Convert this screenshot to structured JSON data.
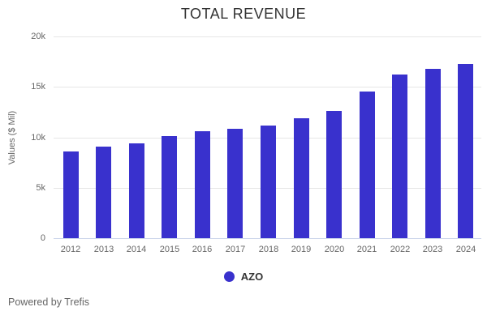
{
  "title": "TOTAL REVENUE",
  "footer": {
    "credit": "Powered by Trefis"
  },
  "legend": {
    "items": [
      {
        "label": "AZO",
        "color": "#3931cd"
      }
    ]
  },
  "chart_data": {
    "type": "bar",
    "title": "TOTAL REVENUE",
    "xlabel": "",
    "ylabel": "Values ($ Mil)",
    "categories": [
      "2012",
      "2013",
      "2014",
      "2015",
      "2016",
      "2017",
      "2018",
      "2019",
      "2020",
      "2021",
      "2022",
      "2023",
      "2024"
    ],
    "series": [
      {
        "name": "AZO",
        "color": "#3931cd",
        "values": [
          8600,
          9100,
          9400,
          10150,
          10600,
          10850,
          11150,
          11850,
          12600,
          14550,
          16200,
          16750,
          17300
        ]
      }
    ],
    "ylim": [
      0,
      20000
    ],
    "y_ticks": [
      {
        "value": 0,
        "label": "0"
      },
      {
        "value": 5000,
        "label": "5k"
      },
      {
        "value": 10000,
        "label": "10k"
      },
      {
        "value": 15000,
        "label": "15k"
      },
      {
        "value": 20000,
        "label": "20k"
      }
    ],
    "grid": true,
    "legend_position": "bottom-center",
    "colors": {
      "bar": "#3931cd",
      "grid": "#e6e6e6",
      "axis_line": "#ccd6eb",
      "title_text": "#333333",
      "tick_text": "#666666"
    }
  }
}
